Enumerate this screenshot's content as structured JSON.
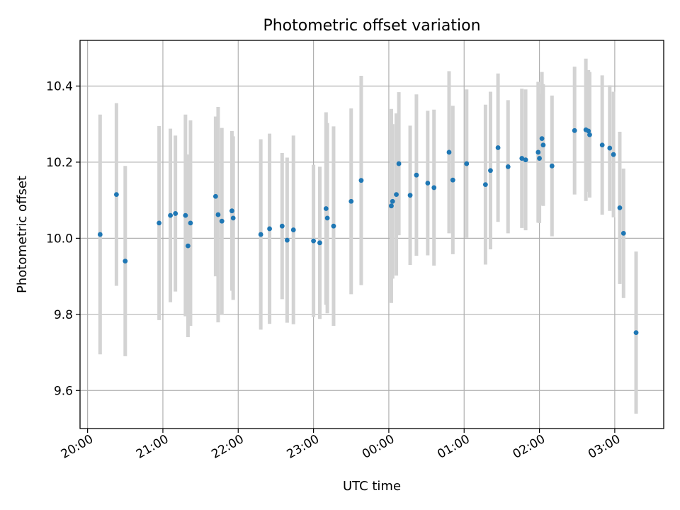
{
  "chart_data": {
    "type": "scatter",
    "title": "Photometric offset variation",
    "xlabel": "UTC time",
    "ylabel": "Photometric offset",
    "xlim": [
      "19:54",
      "03:39"
    ],
    "ylim": [
      9.5,
      10.52
    ],
    "x_tick_labels": [
      "20:00",
      "21:00",
      "22:00",
      "23:00",
      "00:00",
      "01:00",
      "02:00",
      "03:00"
    ],
    "y_tick_labels": [
      "9.6",
      "9.8",
      "10.0",
      "10.2",
      "10.4"
    ],
    "y_ticks": [
      9.6,
      9.8,
      10.0,
      10.2,
      10.4
    ],
    "grid": true,
    "colors": {
      "point": "#1f77b4",
      "errorbar": "#d3d3d3",
      "grid": "#b0b0b0",
      "axes": "#000000"
    },
    "series": [
      {
        "x": [
          "20:10",
          "20:23",
          "20:30",
          "20:57",
          "21:06",
          "21:10",
          "21:18",
          "21:20",
          "21:22",
          "21:42",
          "21:44",
          "21:47",
          "21:55",
          "21:56",
          "22:18",
          "22:25",
          "22:35",
          "22:39",
          "22:44",
          "23:00",
          "23:05",
          "23:10",
          "23:11",
          "23:16",
          "23:30",
          "23:38",
          "00:02",
          "00:03",
          "00:06",
          "00:08",
          "00:17",
          "00:22",
          "00:31",
          "00:36",
          "00:48",
          "00:51",
          "01:02",
          "01:17",
          "01:21",
          "01:27",
          "01:35",
          "01:46",
          "01:49",
          "01:59",
          "02:00",
          "02:02",
          "02:03",
          "02:10",
          "02:28",
          "02:37",
          "02:39",
          "02:40",
          "02:50",
          "02:56",
          "02:59",
          "03:04",
          "03:07",
          "03:17"
        ],
        "y": [
          10.01,
          10.115,
          9.94,
          10.04,
          10.06,
          10.065,
          10.06,
          9.98,
          10.04,
          10.11,
          10.062,
          10.045,
          10.072,
          10.053,
          10.01,
          10.025,
          10.032,
          9.995,
          10.022,
          9.993,
          9.988,
          10.078,
          10.053,
          10.032,
          10.097,
          10.152,
          10.085,
          10.097,
          10.115,
          10.196,
          10.113,
          10.166,
          10.145,
          10.133,
          10.226,
          10.153,
          10.196,
          10.141,
          10.178,
          10.238,
          10.188,
          10.21,
          10.206,
          10.226,
          10.21,
          10.262,
          10.245,
          10.19,
          10.283,
          10.285,
          10.282,
          10.272,
          10.245,
          10.237,
          10.22,
          10.08,
          10.013,
          9.752
        ],
        "yerr": [
          0.315,
          0.24,
          0.25,
          0.255,
          0.228,
          0.205,
          0.265,
          0.24,
          0.27,
          0.21,
          0.283,
          0.245,
          0.21,
          0.215,
          0.25,
          0.25,
          0.192,
          0.217,
          0.248,
          0.2,
          0.2,
          0.253,
          0.25,
          0.262,
          0.244,
          0.275,
          0.255,
          0.203,
          0.213,
          0.188,
          0.183,
          0.212,
          0.19,
          0.205,
          0.213,
          0.195,
          0.195,
          0.21,
          0.207,
          0.195,
          0.175,
          0.183,
          0.185,
          0.185,
          0.17,
          0.175,
          0.16,
          0.185,
          0.168,
          0.187,
          0.16,
          0.165,
          0.183,
          0.165,
          0.165,
          0.2,
          0.17,
          0.213
        ]
      }
    ]
  }
}
